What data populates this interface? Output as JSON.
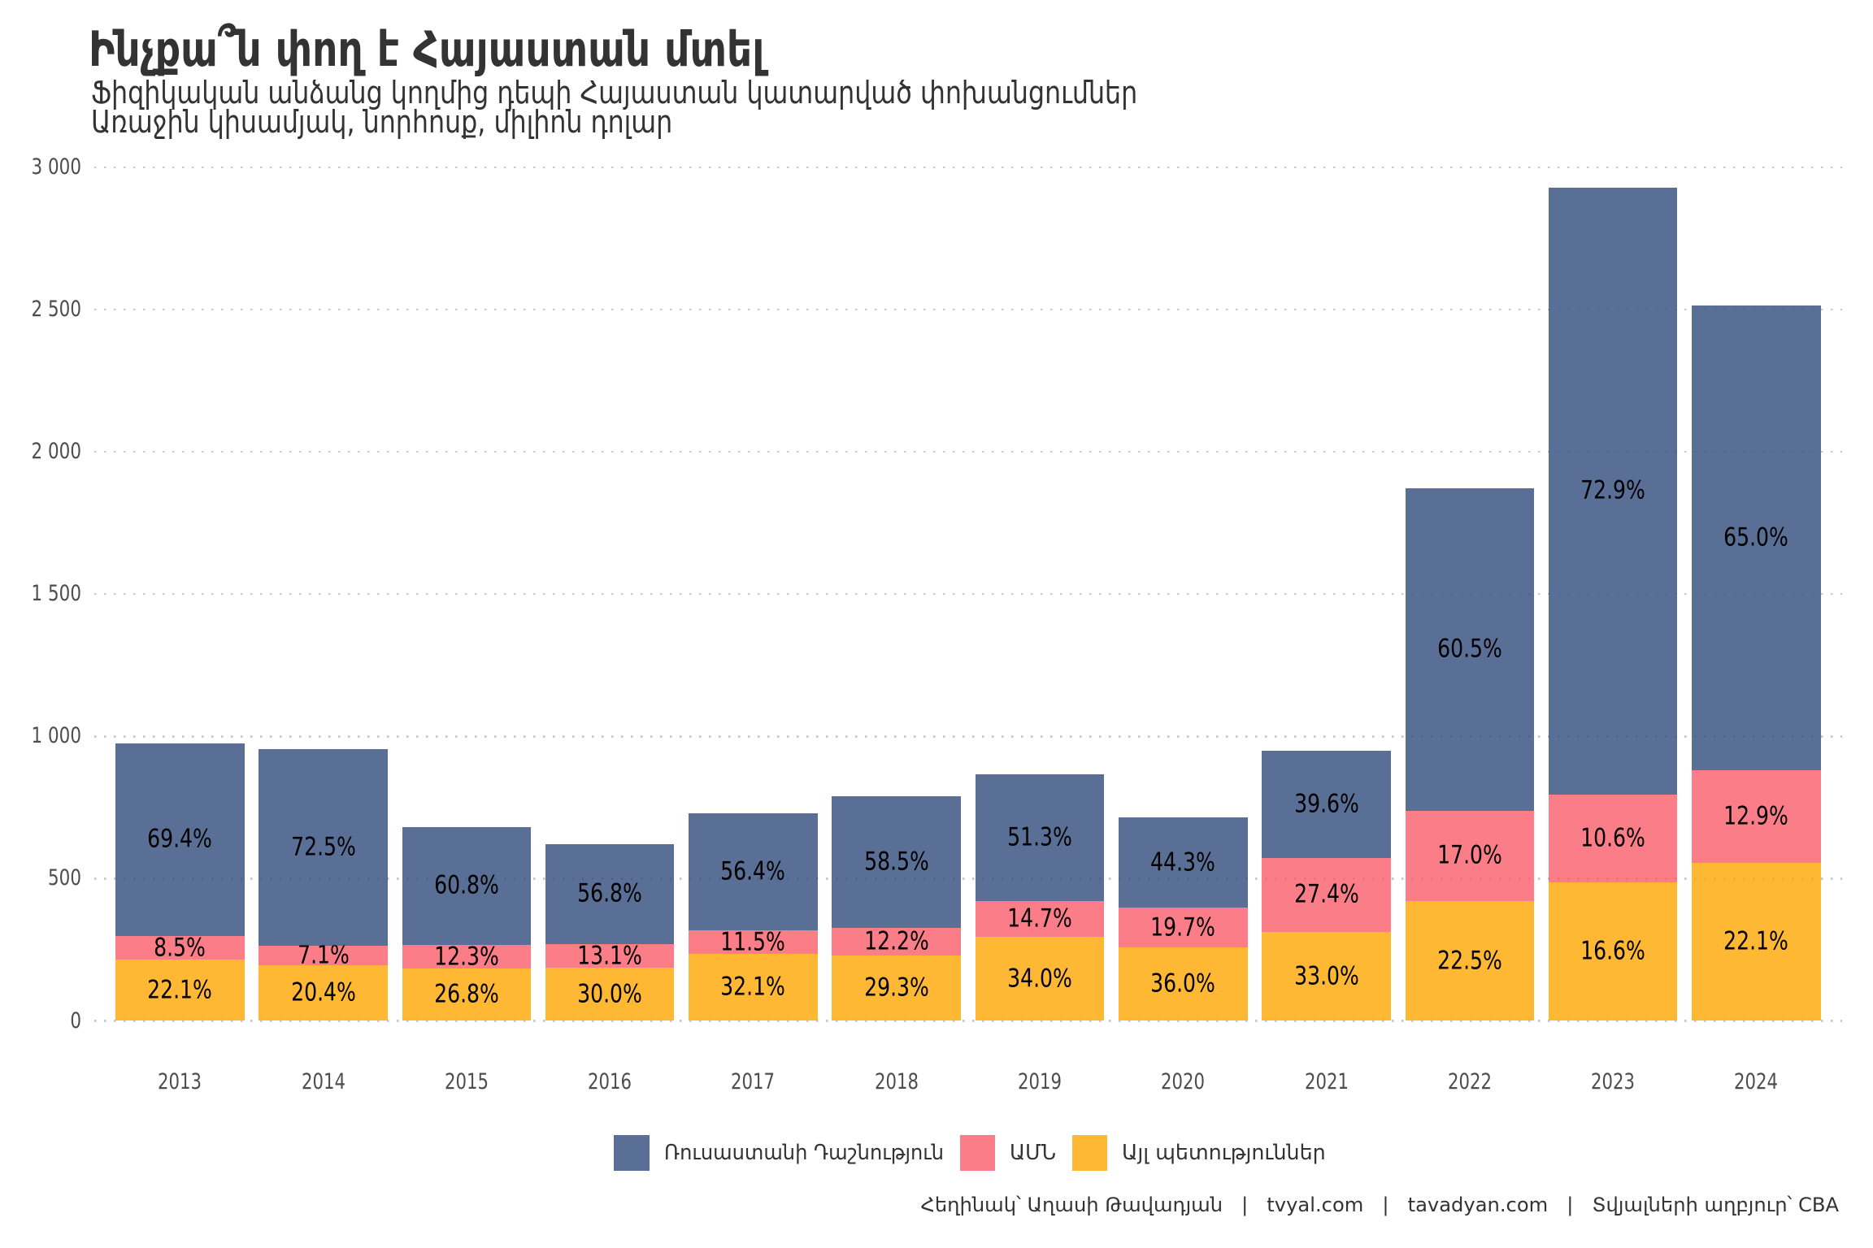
{
  "header": {
    "title": "Ինչքա՞ն փող է Հայաստան մտել",
    "subtitle_line1": "Ֆիզիկական անձանց կողմից դեպի Հայաստան կատարված փոխանցումներ",
    "subtitle_line2": "Առաջին կիսամյակ, նորհոսք, միլիոն դոլար"
  },
  "chart_data": {
    "type": "bar",
    "stacked": true,
    "title": "Ինչքա՞ն փող է Հայաստան մտել",
    "subtitle": "Ֆիզիկական անձանց կողմից դեպի Հայաստան կատարված փոխանցումներ. Առաջին կիսամյակ, նորհոսք, միլիոն դոլար",
    "categories": [
      2013,
      2014,
      2015,
      2016,
      2017,
      2018,
      2019,
      2020,
      2021,
      2022,
      2023,
      2024
    ],
    "totals": [
      975,
      956,
      683,
      623,
      730,
      789,
      866,
      714,
      949,
      1871,
      2925,
      2513
    ],
    "series": [
      {
        "name": "Ռուսաստանի Դաշնություն",
        "color": "#2f4b7c",
        "percent": [
          69.4,
          72.5,
          60.8,
          56.8,
          56.4,
          58.5,
          51.3,
          44.3,
          39.6,
          60.5,
          72.9,
          65.0
        ],
        "values": [
          676.7,
          693.1,
          415.3,
          353.9,
          411.7,
          461.6,
          444.3,
          316.3,
          375.8,
          1132.0,
          2132.3,
          1633.5
        ]
      },
      {
        "name": "ԱՄՆ",
        "color": "#f95d6a",
        "percent": [
          8.5,
          7.1,
          12.3,
          13.1,
          11.5,
          12.2,
          14.7,
          19.7,
          27.4,
          17.0,
          10.6,
          12.9
        ],
        "values": [
          82.9,
          67.9,
          84.0,
          81.6,
          84.0,
          96.3,
          127.3,
          140.7,
          260.0,
          318.1,
          310.1,
          324.2
        ]
      },
      {
        "name": "Այլ պետություններ",
        "color": "#ffa600",
        "percent": [
          22.1,
          20.4,
          26.8,
          30.0,
          32.1,
          29.3,
          34.0,
          36.0,
          33.0,
          22.5,
          16.6,
          22.1
        ],
        "values": [
          215.5,
          195.0,
          183.0,
          186.9,
          234.3,
          231.2,
          294.4,
          257.0,
          313.2,
          421.0,
          485.6,
          555.4
        ]
      }
    ],
    "bar_alpha": 0.8,
    "xlabel": "",
    "ylabel": "",
    "y_axis": {
      "min": 0,
      "max": 3000,
      "ticks": [
        {
          "value": 0,
          "label": "0"
        },
        {
          "value": 500,
          "label": "500"
        },
        {
          "value": 1000,
          "label": "1 000"
        },
        {
          "value": 1500,
          "label": "1 500"
        },
        {
          "value": 2000,
          "label": "2 000"
        },
        {
          "value": 2500,
          "label": "2 500"
        },
        {
          "value": 3000,
          "label": "3 000"
        }
      ]
    },
    "grid": "horizontal-dotted",
    "legend_position": "bottom"
  },
  "footer": {
    "caption": "Հեղինակ՝ Աղասի Թավադյան   |   tvyal.com   |   tavadyan.com   |   Տվյալների աղբյուր՝ CBA"
  }
}
